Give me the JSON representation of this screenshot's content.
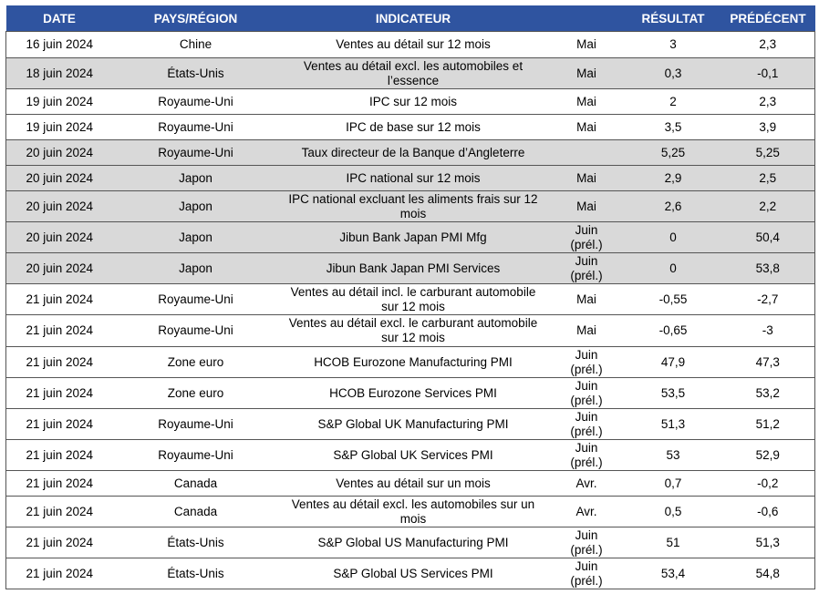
{
  "table": {
    "header": [
      "DATE",
      "PAYS/RÉGION",
      "INDICATEUR",
      null,
      "RÉSULTAT",
      "PRÉDÉCENT"
    ],
    "rows": [
      [
        "16 juin 2024",
        "Chine",
        "Ventes au détail sur 12 mois",
        "Mai",
        "3",
        "2,3"
      ],
      [
        "18 juin 2024",
        "États-Unis",
        "Ventes au détail excl. les automobiles et l’essence",
        "Mai",
        "0,3",
        "-0,1"
      ],
      [
        "19 juin 2024",
        "Royaume-Uni",
        "IPC sur 12 mois",
        "Mai",
        "2",
        "2,3"
      ],
      [
        "19 juin 2024",
        "Royaume-Uni",
        "IPC de base sur 12 mois",
        "Mai",
        "3,5",
        "3,9"
      ],
      [
        "20 juin 2024",
        "Royaume-Uni",
        "Taux directeur de la Banque d’Angleterre",
        null,
        "5,25",
        "5,25"
      ],
      [
        "20 juin 2024",
        "Japon",
        "IPC national sur 12 mois",
        "Mai",
        "2,9",
        "2,5"
      ],
      [
        "20 juin 2024",
        "Japon",
        "IPC national excluant les aliments frais sur 12 mois",
        "Mai",
        "2,6",
        "2,2"
      ],
      [
        "20 juin 2024",
        "Japon",
        "Jibun Bank Japan PMI Mfg",
        "Juin (prél.)",
        "0",
        "50,4"
      ],
      [
        "20 juin 2024",
        "Japon",
        "Jibun Bank Japan PMI Services",
        "Juin (prél.)",
        "0",
        "53,8"
      ],
      [
        "21 juin 2024",
        "Royaume-Uni",
        "Ventes au détail incl. le carburant automobile sur 12 mois",
        "Mai",
        "-0,55",
        "-2,7"
      ],
      [
        "21 juin 2024",
        "Royaume-Uni",
        "Ventes au détail excl. le carburant automobile sur 12 mois",
        "Mai",
        "-0,65",
        "-3"
      ],
      [
        "21 juin 2024",
        "Zone euro",
        "HCOB Eurozone Manufacturing PMI",
        "Juin (prél.)",
        "47,9",
        "47,3"
      ],
      [
        "21 juin 2024",
        "Zone euro",
        "HCOB Eurozone Services PMI",
        "Juin (prél.)",
        "53,5",
        "53,2"
      ],
      [
        "21 juin 2024",
        "Royaume-Uni",
        "S&P Global UK Manufacturing PMI",
        "Juin (prél.)",
        "51,3",
        "51,2"
      ],
      [
        "21 juin 2024",
        "Royaume-Uni",
        "S&P Global UK Services PMI",
        "Juin (prél.)",
        "53",
        "52,9"
      ],
      [
        "21 juin 2024",
        "Canada",
        "Ventes au détail sur un mois",
        "Avr.",
        "0,7",
        "-0,2"
      ],
      [
        "21 juin 2024",
        "Canada",
        "Ventes au détail excl. les automobiles sur un mois",
        "Avr.",
        "0,5",
        "-0,6"
      ],
      [
        "21 juin 2024",
        "États-Unis",
        "S&P Global US Manufacturing PMI",
        "Juin (prél.)",
        "51",
        "51,3"
      ],
      [
        "21 juin 2024",
        "États-Unis",
        "S&P Global US Services PMI",
        "Juin (prél.)",
        "53,4",
        "54,8"
      ]
    ]
  }
}
